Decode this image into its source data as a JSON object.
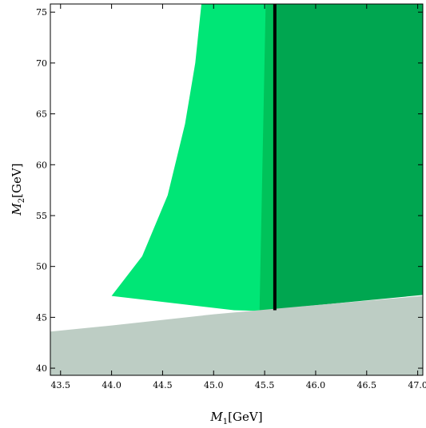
{
  "chart_data": {
    "type": "area",
    "xlim": [
      43.4,
      47.05
    ],
    "ylim": [
      39.3,
      75.8
    ],
    "x_ticks": [
      "43.5",
      "44.0",
      "44.5",
      "45.0",
      "45.5",
      "46.0",
      "46.5",
      "47.0"
    ],
    "y_ticks": [
      "40",
      "45",
      "50",
      "55",
      "60",
      "65",
      "70",
      "75"
    ],
    "xlabel": {
      "symbol": "M",
      "sub": "1",
      "unit": "[GeV]"
    },
    "ylabel": {
      "symbol": "M",
      "sub": "2",
      "unit": "[GeV]"
    },
    "grid": false,
    "regions": [
      {
        "fill": "#00e676",
        "points": [
          [
            44.0,
            47.1
          ],
          [
            44.3,
            51.0
          ],
          [
            44.55,
            57.0
          ],
          [
            44.72,
            64.0
          ],
          [
            44.82,
            70.0
          ],
          [
            44.88,
            75.8
          ],
          [
            45.51,
            75.8
          ],
          [
            45.55,
            45.6
          ],
          [
            45.2,
            45.7
          ],
          [
            44.0,
            47.1
          ]
        ]
      },
      {
        "fill": "#00c25a",
        "points": [
          [
            45.51,
            75.8
          ],
          [
            45.6,
            75.8
          ],
          [
            45.6,
            45.6
          ],
          [
            45.45,
            45.55
          ],
          [
            45.51,
            75.8
          ]
        ]
      },
      {
        "fill": "#00a650",
        "points": [
          [
            45.6,
            75.8
          ],
          [
            47.05,
            75.8
          ],
          [
            47.05,
            47.2
          ],
          [
            45.6,
            45.8
          ],
          [
            45.6,
            75.8
          ]
        ]
      },
      {
        "fill": "#bdcdc4",
        "points": [
          [
            43.4,
            39.3
          ],
          [
            47.05,
            39.3
          ],
          [
            47.05,
            47.1
          ],
          [
            46.0,
            46.2
          ],
          [
            45.0,
            45.3
          ],
          [
            44.0,
            44.2
          ],
          [
            43.4,
            43.6
          ],
          [
            43.4,
            39.3
          ]
        ]
      }
    ],
    "vertical_lines": [
      {
        "x": 45.6,
        "y_from": 45.7,
        "y_to": 75.8,
        "color": "#000000"
      }
    ]
  }
}
